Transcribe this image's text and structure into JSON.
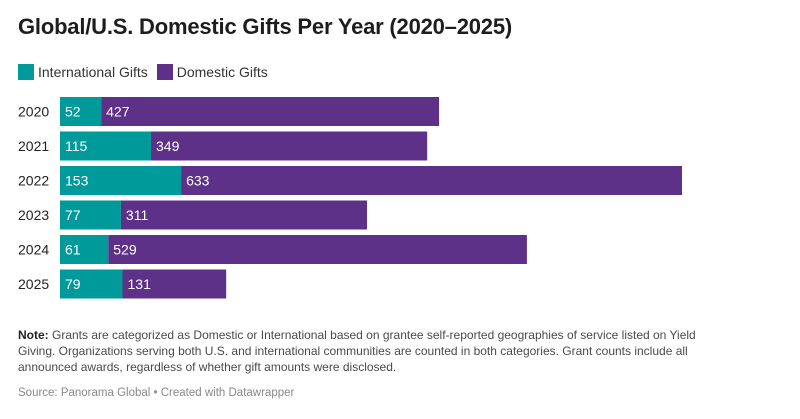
{
  "chart_data": {
    "type": "bar",
    "orientation": "horizontal",
    "stacked": true,
    "title": "Global/U.S. Domestic Gifts Per Year (2020–2025)",
    "categories": [
      "2020",
      "2021",
      "2022",
      "2023",
      "2024",
      "2025"
    ],
    "series": [
      {
        "name": "International Gifts",
        "color": "#009a9a",
        "values": [
          52,
          115,
          153,
          77,
          61,
          79
        ]
      },
      {
        "name": "Domestic Gifts",
        "color": "#5e3189",
        "values": [
          427,
          349,
          633,
          311,
          529,
          131
        ]
      }
    ],
    "legend": "top-left",
    "grid": false,
    "xlim": [
      0,
      786
    ]
  },
  "note": {
    "label": "Note:",
    "text": " Grants are categorized as Domestic or International based on grantee self-reported geographies of service listed on Yield Giving. Organizations serving both U.S. and international communities are counted in both categories. Grant counts include all announced awards, regardless of whether gift amounts were disclosed."
  },
  "source": "Source: Panorama Global • Created with Datawrapper"
}
